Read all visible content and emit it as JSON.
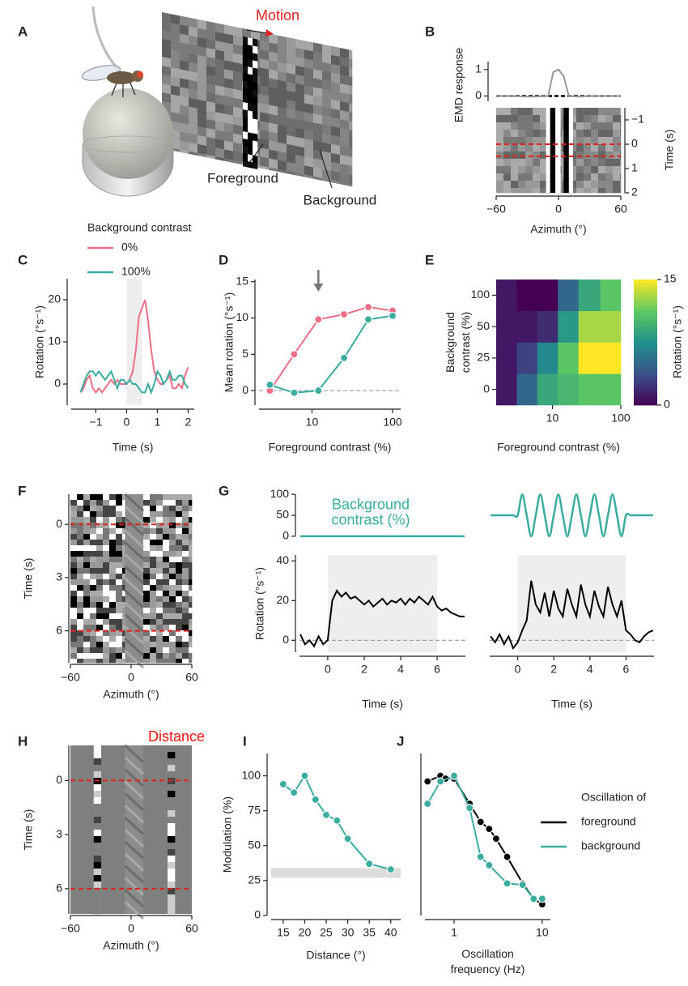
{
  "illustration": {
    "panel": "A",
    "motion": "Motion",
    "foreground": "Foreground",
    "background": "Background"
  },
  "chart_data": [
    {
      "panel": "B",
      "type": "line",
      "ylabel": "EMD response",
      "x": [
        -60,
        -45,
        -30,
        -20,
        -10,
        -5,
        0,
        5,
        10,
        20,
        30,
        45,
        60
      ],
      "values": [
        0,
        0,
        -0.03,
        -0.02,
        0,
        0.9,
        1,
        0.75,
        0,
        -0.03,
        0,
        0,
        0
      ],
      "color": "#999999",
      "zero_line": "#000000",
      "xlim": [
        -60,
        60
      ],
      "xticks": [
        {
          "value": -60,
          "label": "−60"
        },
        0,
        60
      ],
      "xlabel": "Azimuth (°)",
      "ylim": [
        -0.2,
        1.3
      ],
      "yticks": [
        0,
        1
      ],
      "y2label": "Time (s)",
      "y2lim": [
        -1.5,
        2
      ],
      "y2ticks": [
        {
          "value": -1,
          "label": "−1"
        },
        0,
        1,
        2
      ],
      "y2lines": [
        0,
        0.5
      ]
    },
    {
      "panel": "C",
      "type": "line",
      "legend_title": "Background contrast",
      "x": [
        -1.5,
        -1.4,
        -1.3,
        -1.2,
        -1.1,
        -1.0,
        -0.9,
        -0.8,
        -0.7,
        -0.6,
        -0.5,
        -0.4,
        -0.3,
        -0.2,
        -0.1,
        0,
        0.1,
        0.2,
        0.3,
        0.4,
        0.5,
        0.6,
        0.7,
        0.8,
        0.9,
        1.0,
        1.1,
        1.2,
        1.3,
        1.4,
        1.5,
        1.6,
        1.7,
        1.8,
        1.9,
        2.0
      ],
      "series": [
        {
          "name": "0%",
          "color": "#f06e87",
          "values": [
            -2,
            -1,
            1,
            2,
            -1,
            -2,
            -1,
            -2,
            -1,
            0,
            1,
            0,
            1,
            0,
            0,
            0,
            1,
            3,
            8,
            16,
            18,
            20,
            15,
            8,
            3,
            1,
            0,
            0,
            1,
            2,
            -1,
            -1,
            0,
            -1,
            2,
            4
          ]
        },
        {
          "name": "100%",
          "color": "#3aada0",
          "values": [
            -2,
            0,
            2,
            3,
            3,
            2,
            3,
            2,
            1,
            2,
            3,
            1,
            -1,
            1,
            1,
            0,
            1,
            0,
            0,
            -1,
            -2,
            -2,
            0,
            -2,
            0,
            3,
            2,
            0,
            1,
            3,
            1,
            1,
            2,
            2,
            0,
            -1
          ]
        }
      ],
      "shade": [
        0,
        0.5
      ],
      "xlim": [
        -1.8,
        2.2
      ],
      "xticks": [
        {
          "value": -1,
          "label": "−1"
        },
        0,
        1,
        2
      ],
      "xlabel": "Time (s)",
      "ylim": [
        -5,
        25
      ],
      "yticks": [
        0,
        10,
        20
      ],
      "ylabel": "Rotation (°s⁻¹)"
    },
    {
      "panel": "D",
      "type": "line",
      "xscale": "log",
      "markers": true,
      "x": [
        3,
        6,
        12,
        25,
        50,
        100
      ],
      "series": [
        {
          "color": "#f06e87",
          "values": [
            0,
            5,
            9.8,
            10.5,
            11.5,
            11
          ]
        },
        {
          "color": "#3aada0",
          "values": [
            0.8,
            -0.3,
            0,
            4.5,
            9.8,
            10.3
          ]
        }
      ],
      "zero_line": "#999999",
      "arrow_x": 12,
      "xlim": [
        2.2,
        126
      ],
      "xticks": [
        10,
        100
      ],
      "xlabel": "Foreground contrast (%)",
      "ylim": [
        -2,
        15.3
      ],
      "yticks": [
        0,
        5,
        10,
        15
      ],
      "ylabel": "Mean rotation (°s⁻¹)"
    },
    {
      "panel": "E",
      "type": "heatmap",
      "xscale": "log",
      "xbins": [
        1.5,
        3,
        6,
        12,
        24,
        50,
        100
      ],
      "y_categories": [
        0,
        25,
        50,
        100
      ],
      "values": [
        [
          1,
          5,
          9,
          10,
          11,
          11
        ],
        [
          1,
          3,
          7,
          11,
          15,
          15
        ],
        [
          1,
          1,
          2,
          8,
          13,
          13
        ],
        [
          1,
          0,
          0,
          5,
          9,
          11
        ]
      ],
      "colormap": "viridis",
      "xlim": [
        1.5,
        100
      ],
      "xticks": [
        10,
        100
      ],
      "xlabel": "Foreground contrast (%)",
      "ylabel": [
        "Background",
        "contrast (%)"
      ],
      "colorbar": {
        "label": "Rotation (°s⁻¹)",
        "lim": [
          0,
          15
        ],
        "ticks": [
          0,
          15
        ]
      }
    },
    {
      "panel": "F",
      "type": "image",
      "xlim": [
        -60,
        60
      ],
      "xticks": [
        {
          "value": -60,
          "label": "−60"
        },
        0,
        60
      ],
      "xlabel": "Azimuth (°)",
      "ylim": [
        7.8,
        -1.7
      ],
      "yticks": [
        0,
        3,
        6
      ],
      "ylabel": "Time (s)",
      "hlines": [
        0,
        6
      ]
    },
    {
      "panel": "G",
      "type": "trace",
      "contrast_label": [
        "Background",
        "contrast (%)"
      ],
      "contrast_color": "#3aada0",
      "contrast_ylim": [
        -6,
        110
      ],
      "contrast_yticks": [
        0,
        50,
        100
      ],
      "trace_color": "#000000",
      "ylabel": "Rotation (°s⁻¹)",
      "ylim": [
        -6,
        43
      ],
      "yticks": [
        0,
        20,
        40
      ],
      "zero_line": "#999999",
      "shade": [
        0,
        6
      ],
      "xlim": [
        -1.55,
        7.55
      ],
      "xticks": [
        0,
        2,
        4,
        6
      ],
      "xlabel": "Time (s)",
      "x": [
        -1.5,
        -1.25,
        -1,
        -0.75,
        -0.5,
        -0.25,
        0,
        0.25,
        0.5,
        0.75,
        1,
        1.25,
        1.5,
        1.75,
        2,
        2.25,
        2.5,
        2.75,
        3,
        3.25,
        3.5,
        3.75,
        4,
        4.25,
        4.5,
        4.75,
        5,
        5.25,
        5.5,
        5.75,
        6,
        6.25,
        6.5,
        6.75,
        7,
        7.25,
        7.5
      ],
      "panels": [
        {
          "contrast_x": [
            -1.5,
            7.5
          ],
          "contrast": [
            0,
            0
          ],
          "values": [
            3,
            -2,
            0,
            -3,
            2,
            -2,
            0,
            20,
            25,
            22,
            24,
            21,
            22,
            20,
            18,
            20,
            17,
            19,
            21,
            18,
            20,
            19,
            21,
            18,
            21,
            19,
            22,
            20,
            18,
            22,
            17,
            15,
            16,
            14,
            13,
            12,
            12
          ]
        },
        {
          "contrast_x": [
            -1.5,
            -1.25,
            -1,
            -0.75,
            -0.5,
            -0.25,
            0,
            0.25,
            0.5,
            0.75,
            1,
            1.25,
            1.5,
            1.75,
            2,
            2.25,
            2.5,
            2.75,
            3,
            3.25,
            3.5,
            3.75,
            4,
            4.25,
            4.5,
            4.75,
            5,
            5.25,
            5.5,
            5.75,
            6,
            6.25,
            6.5,
            6.75,
            7,
            7.25,
            7.5
          ],
          "contrast": [
            50,
            50,
            50,
            50,
            50,
            50,
            50,
            100,
            50,
            0,
            50,
            100,
            50,
            0,
            50,
            100,
            50,
            0,
            50,
            100,
            50,
            0,
            50,
            100,
            50,
            0,
            50,
            100,
            50,
            0,
            50,
            50,
            50,
            50,
            50,
            50,
            50
          ],
          "values": [
            2,
            -1,
            3,
            -2,
            2,
            -4,
            -1,
            5,
            10,
            30,
            18,
            14,
            24,
            12,
            25,
            16,
            12,
            26,
            18,
            12,
            28,
            18,
            12,
            25,
            17,
            12,
            27,
            18,
            12,
            20,
            5,
            3,
            0,
            -1,
            2,
            4,
            5
          ]
        }
      ]
    },
    {
      "panel": "H",
      "type": "image",
      "annotation": "Distance",
      "xlim": [
        -60,
        60
      ],
      "xticks": [
        {
          "value": -60,
          "label": "−60"
        },
        0,
        60
      ],
      "xlabel": "Azimuth (°)",
      "ylim": [
        7.4,
        -1.95
      ],
      "yticks": [
        0,
        3,
        6
      ],
      "ylabel": "Time (s)",
      "hlines": [
        0,
        6
      ]
    },
    {
      "panel": "I",
      "type": "line",
      "markers": true,
      "x": [
        15,
        17.5,
        20,
        22.5,
        25,
        27.5,
        30,
        35,
        40
      ],
      "values": [
        94,
        88,
        100,
        83,
        72,
        68,
        55,
        37,
        33
      ],
      "color": "#3aada0",
      "band": [
        27,
        34
      ],
      "xlim": [
        12.2,
        42.3
      ],
      "xticks": [
        15,
        20,
        25,
        30,
        35,
        40
      ],
      "xlabel": "Distance (°)",
      "ylim": [
        0,
        116
      ],
      "yticks": [
        0,
        25,
        50,
        75,
        100
      ],
      "ylabel": "Modulation (%)"
    },
    {
      "panel": "J",
      "type": "line",
      "xscale": "log",
      "markers": true,
      "legend_title": "Oscillation of",
      "series": [
        {
          "name": "foreground",
          "color": "#000000",
          "x": [
            0.5,
            0.7,
            0.8,
            1,
            1.5,
            2,
            2.5,
            3,
            4,
            6,
            8,
            10
          ],
          "values": [
            96,
            100,
            98,
            98,
            80,
            67,
            62,
            55,
            42,
            23,
            12,
            8
          ]
        },
        {
          "name": "background",
          "color": "#3aada0",
          "x": [
            0.5,
            0.7,
            1,
            1.5,
            2,
            2.5,
            4,
            6,
            8,
            10
          ],
          "values": [
            80,
            96,
            100,
            77,
            42,
            36,
            23,
            22,
            12,
            12
          ]
        }
      ],
      "xlim": [
        0.467,
        12.4
      ],
      "xticks": [
        1,
        10
      ],
      "xlabel": [
        "Oscillation",
        "frequency (Hz)"
      ],
      "ylim": [
        0,
        116
      ]
    }
  ]
}
